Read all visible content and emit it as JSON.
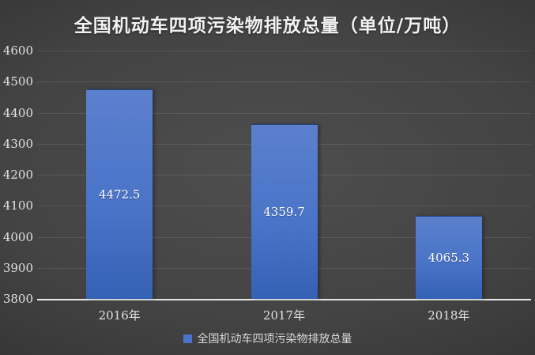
{
  "chart": {
    "title": "全国机动车四项污染物排放总量（单位/万吨）",
    "legend_label": "全国机动车四项污染物排放总量"
  },
  "chart_data": {
    "type": "bar",
    "title": "全国机动车四项污染物排放总量（单位/万吨）",
    "categories": [
      "2016年",
      "2017年",
      "2018年"
    ],
    "values": [
      4472.5,
      4359.7,
      4065.3
    ],
    "series_name": "全国机动车四项污染物排放总量",
    "data_labels": [
      "4472.5",
      "4359.7",
      "4065.3"
    ],
    "ylim": [
      3800,
      4600
    ],
    "ytick_step": 100,
    "yticks": [
      4600,
      4500,
      4400,
      4300,
      4200,
      4100,
      4000,
      3900,
      3800
    ],
    "xlabel": "",
    "ylabel": "",
    "grid": true,
    "legend_position": "bottom"
  },
  "colors": {
    "background_center": "#4e4e4e",
    "background_edge": "#262626",
    "bar_top": "#5b80cd",
    "bar_mid": "#4a74c8",
    "bar_bottom": "#3561b5",
    "axis_line": "#e8e8e8",
    "gridline": "rgba(255,255,255,0.10)",
    "text": "#e2e2e2",
    "label_color": "#ffffff"
  }
}
